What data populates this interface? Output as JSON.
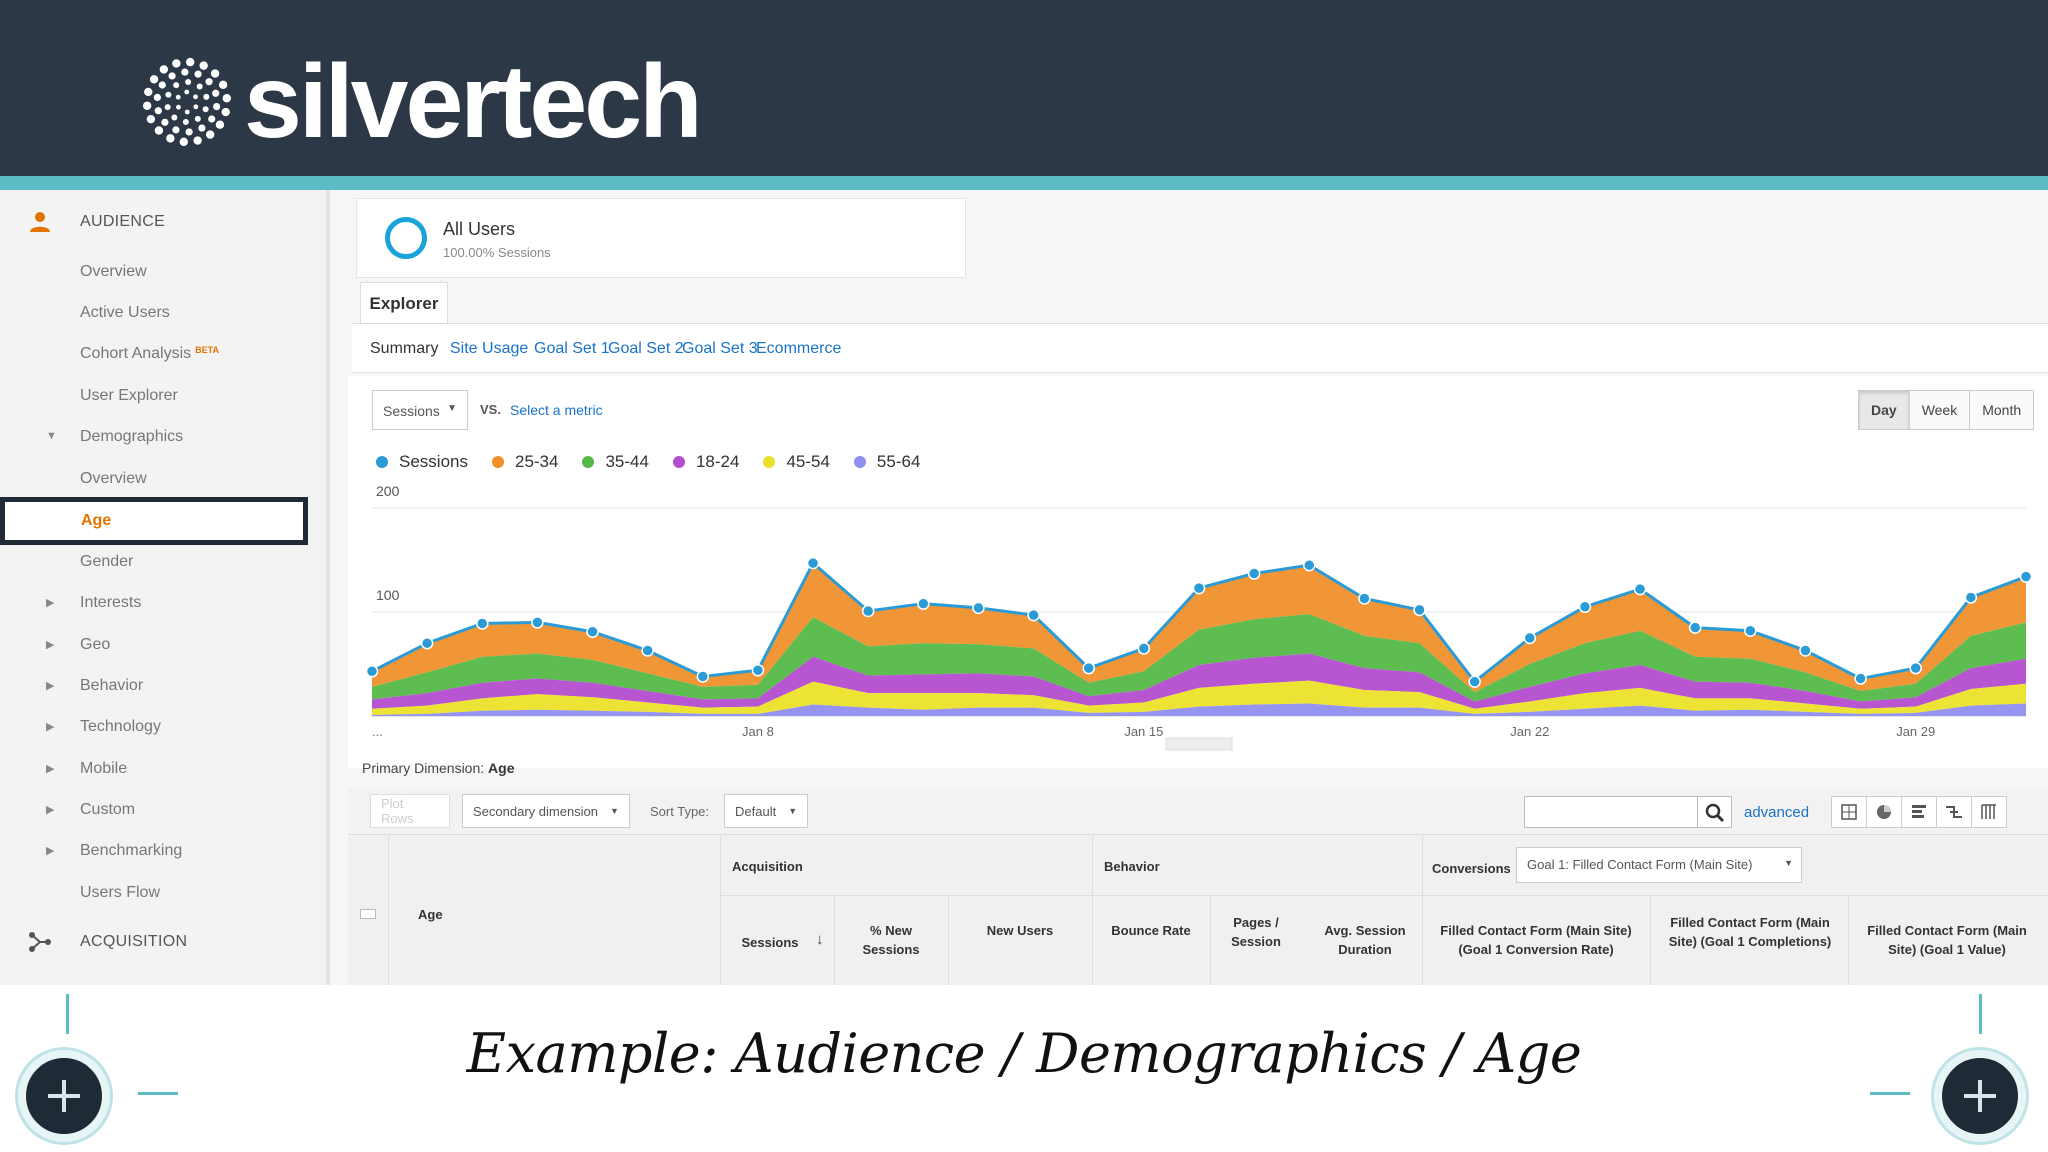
{
  "brand": {
    "name": "silvertech"
  },
  "sidebar": {
    "audience_label": "AUDIENCE",
    "acquisition_label": "ACQUISITION",
    "items": [
      {
        "label": "Overview"
      },
      {
        "label": "Active Users"
      },
      {
        "label": "Cohort Analysis",
        "badge": "BETA"
      },
      {
        "label": "User Explorer"
      },
      {
        "label": "Demographics"
      },
      {
        "label": "Overview"
      },
      {
        "label": "Age"
      },
      {
        "label": "Gender"
      },
      {
        "label": "Interests"
      },
      {
        "label": "Geo"
      },
      {
        "label": "Behavior"
      },
      {
        "label": "Technology"
      },
      {
        "label": "Mobile"
      },
      {
        "label": "Custom"
      },
      {
        "label": "Benchmarking"
      },
      {
        "label": "Users Flow"
      }
    ]
  },
  "segment": {
    "name": "All Users",
    "sub": "100.00% Sessions"
  },
  "explorer_tab": "Explorer",
  "subtabs": [
    "Summary",
    "Site Usage",
    "Goal Set 1",
    "Goal Set 2",
    "Goal Set 3",
    "Ecommerce"
  ],
  "metric": {
    "selected": "Sessions",
    "vs": "VS.",
    "select_metric": "Select a metric"
  },
  "periods": [
    "Day",
    "Week",
    "Month"
  ],
  "chart_data": {
    "type": "area",
    "x_ticks": [
      "...",
      "Jan 8",
      "Jan 15",
      "Jan 22",
      "Jan 29"
    ],
    "ylim": [
      0,
      200
    ],
    "y_ticks": [
      "200",
      "100"
    ],
    "grid": true,
    "legend_position": "top-left",
    "series": [
      {
        "name": "Sessions",
        "color": "#2b9bd6",
        "values": [
          43,
          70,
          89,
          90,
          81,
          63,
          38,
          44,
          147,
          101,
          108,
          104,
          97,
          46,
          65,
          123,
          137,
          145,
          113,
          102,
          33,
          75,
          105,
          122,
          85,
          82,
          63,
          36,
          46,
          114,
          134
        ]
      },
      {
        "name": "25-34",
        "color": "#f0902c",
        "values": [
          15,
          28,
          32,
          30,
          27,
          22,
          10,
          14,
          52,
          34,
          38,
          35,
          32,
          14,
          22,
          40,
          44,
          47,
          36,
          32,
          10,
          25,
          35,
          40,
          28,
          27,
          21,
          12,
          15,
          37,
          44
        ]
      },
      {
        "name": "35-44",
        "color": "#55b947",
        "values": [
          12,
          20,
          25,
          24,
          22,
          17,
          12,
          13,
          38,
          28,
          30,
          28,
          27,
          13,
          18,
          34,
          37,
          38,
          31,
          28,
          9,
          22,
          29,
          33,
          24,
          23,
          18,
          10,
          13,
          31,
          35
        ]
      },
      {
        "name": "18-24",
        "color": "#b44dd0",
        "values": [
          9,
          12,
          15,
          15,
          14,
          11,
          8,
          8,
          24,
          17,
          18,
          19,
          18,
          9,
          12,
          22,
          25,
          26,
          21,
          19,
          7,
          14,
          19,
          22,
          16,
          15,
          12,
          7,
          9,
          20,
          24
        ]
      },
      {
        "name": "45-54",
        "color": "#ebe12a",
        "values": [
          6,
          8,
          12,
          15,
          13,
          9,
          6,
          7,
          22,
          14,
          16,
          14,
          12,
          7,
          9,
          18,
          20,
          22,
          17,
          15,
          5,
          10,
          15,
          17,
          12,
          11,
          8,
          5,
          6,
          16,
          19
        ]
      },
      {
        "name": "55-64",
        "color": "#8f8ff0",
        "values": [
          1,
          2,
          5,
          6,
          5,
          4,
          2,
          2,
          11,
          8,
          6,
          8,
          8,
          3,
          4,
          9,
          11,
          12,
          8,
          8,
          2,
          4,
          7,
          10,
          5,
          6,
          4,
          2,
          3,
          10,
          12
        ]
      }
    ]
  },
  "controls": {
    "primary_dimension_label": "Primary Dimension:",
    "primary_dimension_value": "Age",
    "plot_rows": "Plot Rows",
    "secondary_dimension": "Secondary dimension",
    "sort_type_label": "Sort Type:",
    "sort_type_value": "Default",
    "search_placeholder": "",
    "advanced": "advanced"
  },
  "table": {
    "groups": {
      "acquisition": "Acquisition",
      "behavior": "Behavior",
      "conversions": "Conversions"
    },
    "goal_select": "Goal 1: Filled Contact Form (Main Site)",
    "dimension": "Age",
    "columns": [
      "Sessions",
      "% New Sessions",
      "New Users",
      "Bounce Rate",
      "Pages / Session",
      "Avg. Session Duration",
      "Filled Contact Form (Main Site) (Goal 1 Conversion Rate)",
      "Filled Contact Form (Main Site) (Goal 1 Completions)",
      "Filled Contact Form (Main Site) (Goal 1 Value)"
    ]
  },
  "caption": "Example: Audience / Demographics / Age"
}
